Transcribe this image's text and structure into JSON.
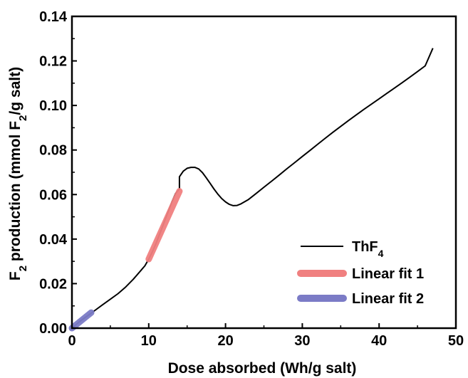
{
  "chart_data": {
    "type": "line",
    "xlabel": "Dose absorbed (Wh/g salt)",
    "ylabel": {
      "before_sub1": "F",
      "sub1": "2",
      "middle": " production (mmol F",
      "sub2": "2",
      "after_sub2": "/g salt)"
    },
    "xlim": [
      0,
      50
    ],
    "ylim": [
      0,
      0.14
    ],
    "xticks": [
      0,
      10,
      20,
      30,
      40,
      50
    ],
    "yticks": [
      0.0,
      0.02,
      0.04,
      0.06,
      0.08,
      0.1,
      0.12,
      0.14
    ],
    "ytick_labels": [
      "0.00",
      "0.02",
      "0.04",
      "0.06",
      "0.08",
      "0.10",
      "0.12",
      "0.14"
    ],
    "grid": false,
    "legend_position": "bottom-right",
    "series": [
      {
        "name": "ThF",
        "name_sub": "4",
        "color": "#000000",
        "style": "thin",
        "x": [
          0,
          1,
          2,
          3,
          4,
          5,
          6,
          7,
          8,
          9,
          9.5,
          10,
          10.5,
          11,
          11.5,
          12,
          12.5,
          13,
          13.5,
          14,
          14,
          14.5,
          15,
          15.5,
          16,
          16.5,
          17,
          17.5,
          18,
          18.5,
          19,
          19.5,
          20,
          20.5,
          21,
          21.5,
          22,
          23,
          24,
          25,
          26,
          27,
          28,
          29,
          30,
          31,
          32,
          33,
          34,
          35,
          36,
          37,
          38,
          39,
          40,
          41,
          42,
          43,
          44,
          45,
          46,
          47
        ],
        "y": [
          0,
          0.003,
          0.0055,
          0.008,
          0.0105,
          0.013,
          0.0155,
          0.0185,
          0.022,
          0.026,
          0.028,
          0.031,
          0.0345,
          0.0385,
          0.043,
          0.0475,
          0.052,
          0.0565,
          0.0605,
          0.0625,
          0.068,
          0.0705,
          0.0718,
          0.0722,
          0.0722,
          0.0715,
          0.0698,
          0.0675,
          0.065,
          0.0625,
          0.0602,
          0.0582,
          0.0567,
          0.0556,
          0.055,
          0.0551,
          0.0558,
          0.0578,
          0.0605,
          0.0633,
          0.066,
          0.0688,
          0.0716,
          0.0743,
          0.0771,
          0.0798,
          0.0826,
          0.0853,
          0.088,
          0.0906,
          0.0932,
          0.0957,
          0.0982,
          0.1006,
          0.103,
          0.1054,
          0.1078,
          0.1102,
          0.1127,
          0.1152,
          0.1178,
          0.1257
        ]
      },
      {
        "name": "Linear fit 1",
        "color": "#f08080",
        "style": "thick",
        "x": [
          10,
          14
        ],
        "y": [
          0.031,
          0.0615
        ]
      },
      {
        "name": "Linear fit 2",
        "color": "#7b7bc6",
        "style": "thick",
        "x": [
          0,
          2.5
        ],
        "y": [
          0,
          0.007
        ]
      }
    ]
  }
}
